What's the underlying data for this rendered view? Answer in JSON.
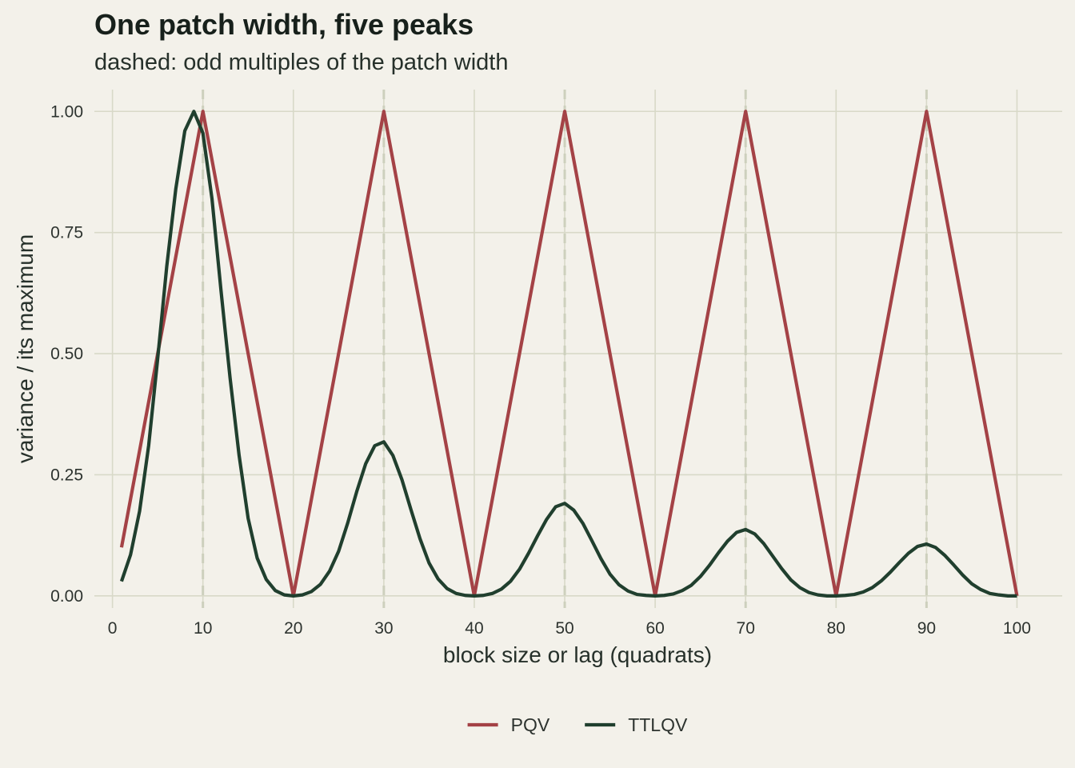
{
  "chart_data": {
    "type": "line",
    "title": "One patch width, five peaks",
    "subtitle": "dashed: odd multiples of the patch width",
    "xlabel": "block size or lag (quadrats)",
    "ylabel": "variance / its maximum",
    "xlim": [
      -2,
      105
    ],
    "ylim": [
      -0.025,
      1.045
    ],
    "xticks": [
      0,
      10,
      20,
      30,
      40,
      50,
      60,
      70,
      80,
      90,
      100
    ],
    "yticks": [
      0,
      0.25,
      0.5,
      0.75,
      1
    ],
    "ytick_labels": [
      "0.00",
      "0.25",
      "0.50",
      "0.75",
      "1.00"
    ],
    "grid": true,
    "reference_lines_x": [
      10,
      30,
      50,
      70,
      90
    ],
    "legend_position": "bottom",
    "series": [
      {
        "name": "PQV",
        "color": "#a44246",
        "points": [
          [
            1,
            0.1
          ],
          [
            10,
            1.0
          ],
          [
            20,
            0.0
          ],
          [
            30,
            1.0
          ],
          [
            40,
            0.0
          ],
          [
            50,
            1.0
          ],
          [
            60,
            0.0
          ],
          [
            70,
            1.0
          ],
          [
            80,
            0.0
          ],
          [
            90,
            1.0
          ],
          [
            100,
            0.0
          ]
        ]
      },
      {
        "name": "TTLQV",
        "color": "#203f2e",
        "points": [
          [
            1,
            0.03
          ],
          [
            2,
            0.085
          ],
          [
            3,
            0.175
          ],
          [
            4,
            0.31
          ],
          [
            5,
            0.49
          ],
          [
            6,
            0.68
          ],
          [
            7,
            0.84
          ],
          [
            8,
            0.96
          ],
          [
            9,
            1.0
          ],
          [
            10,
            0.955
          ],
          [
            11,
            0.82
          ],
          [
            12,
            0.63
          ],
          [
            13,
            0.45
          ],
          [
            14,
            0.29
          ],
          [
            15,
            0.16
          ],
          [
            16,
            0.078
          ],
          [
            17,
            0.034
          ],
          [
            18,
            0.011
          ],
          [
            19,
            0.002
          ],
          [
            20,
            0.0
          ],
          [
            21,
            0.002
          ],
          [
            22,
            0.009
          ],
          [
            23,
            0.024
          ],
          [
            24,
            0.051
          ],
          [
            25,
            0.092
          ],
          [
            26,
            0.15
          ],
          [
            27,
            0.215
          ],
          [
            28,
            0.273
          ],
          [
            29,
            0.31
          ],
          [
            30,
            0.318
          ],
          [
            31,
            0.29
          ],
          [
            32,
            0.24
          ],
          [
            33,
            0.178
          ],
          [
            34,
            0.118
          ],
          [
            35,
            0.068
          ],
          [
            36,
            0.035
          ],
          [
            37,
            0.015
          ],
          [
            38,
            0.005
          ],
          [
            39,
            0.001
          ],
          [
            40,
            0.0
          ],
          [
            41,
            0.001
          ],
          [
            42,
            0.005
          ],
          [
            43,
            0.014
          ],
          [
            44,
            0.03
          ],
          [
            45,
            0.055
          ],
          [
            46,
            0.088
          ],
          [
            47,
            0.124
          ],
          [
            48,
            0.158
          ],
          [
            49,
            0.184
          ],
          [
            50,
            0.191
          ],
          [
            51,
            0.177
          ],
          [
            52,
            0.15
          ],
          [
            53,
            0.114
          ],
          [
            54,
            0.077
          ],
          [
            55,
            0.045
          ],
          [
            56,
            0.023
          ],
          [
            57,
            0.01
          ],
          [
            58,
            0.003
          ],
          [
            59,
            0.001
          ],
          [
            60,
            0.0
          ],
          [
            61,
            0.001
          ],
          [
            62,
            0.004
          ],
          [
            63,
            0.011
          ],
          [
            64,
            0.022
          ],
          [
            65,
            0.04
          ],
          [
            66,
            0.063
          ],
          [
            67,
            0.089
          ],
          [
            68,
            0.113
          ],
          [
            69,
            0.131
          ],
          [
            70,
            0.137
          ],
          [
            71,
            0.128
          ],
          [
            72,
            0.108
          ],
          [
            73,
            0.082
          ],
          [
            74,
            0.056
          ],
          [
            75,
            0.033
          ],
          [
            76,
            0.017
          ],
          [
            77,
            0.007
          ],
          [
            78,
            0.002
          ],
          [
            79,
            0.0
          ],
          [
            80,
            0.0
          ],
          [
            81,
            0.001
          ],
          [
            82,
            0.003
          ],
          [
            83,
            0.008
          ],
          [
            84,
            0.017
          ],
          [
            85,
            0.031
          ],
          [
            86,
            0.049
          ],
          [
            87,
            0.069
          ],
          [
            88,
            0.088
          ],
          [
            89,
            0.102
          ],
          [
            90,
            0.107
          ],
          [
            91,
            0.1
          ],
          [
            92,
            0.084
          ],
          [
            93,
            0.064
          ],
          [
            94,
            0.043
          ],
          [
            95,
            0.025
          ],
          [
            96,
            0.013
          ],
          [
            97,
            0.005
          ],
          [
            98,
            0.002
          ],
          [
            99,
            0.0
          ],
          [
            100,
            0.0
          ]
        ]
      }
    ]
  }
}
